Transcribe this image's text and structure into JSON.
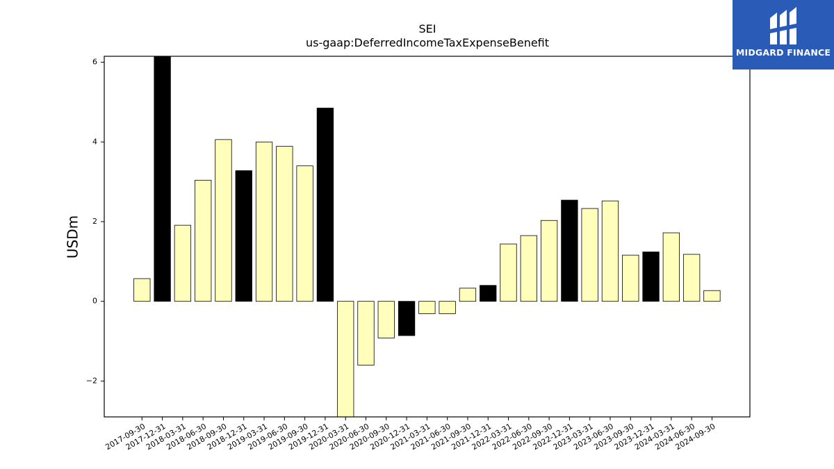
{
  "chart_data": {
    "type": "bar",
    "title": "SEI",
    "subtitle": "us-gaap:DeferredIncomeTaxExpenseBenefit",
    "xlabel": "",
    "ylabel": "USDm",
    "ylim": [
      -2.9,
      6.15
    ],
    "yticks": [
      -2,
      0,
      2,
      4,
      6
    ],
    "ytick_labels": [
      "−2",
      "0",
      "2",
      "4",
      "6"
    ],
    "categories": [
      "2017-09-30",
      "2017-12-31",
      "2018-03-31",
      "2018-06-30",
      "2018-09-30",
      "2018-12-31",
      "2019-03-31",
      "2019-06-30",
      "2019-09-30",
      "2019-12-31",
      "2020-03-31",
      "2020-06-30",
      "2020-09-30",
      "2020-12-31",
      "2021-03-31",
      "2021-06-30",
      "2021-09-30",
      "2021-12-31",
      "2022-03-31",
      "2022-06-30",
      "2022-09-30",
      "2022-12-31",
      "2023-03-31",
      "2023-06-30",
      "2023-09-30",
      "2023-12-31",
      "2024-03-31",
      "2024-06-30",
      "2024-09-30"
    ],
    "values": [
      0.57,
      6.15,
      1.91,
      3.04,
      4.06,
      3.28,
      4.0,
      3.89,
      3.4,
      4.85,
      -2.9,
      -1.6,
      -0.92,
      -0.86,
      -0.31,
      -0.31,
      0.33,
      0.4,
      1.44,
      1.65,
      2.03,
      2.54,
      2.33,
      2.52,
      1.16,
      1.24,
      1.72,
      1.18,
      0.27
    ],
    "bar_colors": [
      "#ffffbb",
      "#000000",
      "#ffffbb",
      "#ffffbb",
      "#ffffbb",
      "#000000",
      "#ffffbb",
      "#ffffbb",
      "#ffffbb",
      "#000000",
      "#ffffbb",
      "#ffffbb",
      "#ffffbb",
      "#000000",
      "#ffffbb",
      "#ffffbb",
      "#ffffbb",
      "#000000",
      "#ffffbb",
      "#ffffbb",
      "#ffffbb",
      "#000000",
      "#ffffbb",
      "#ffffbb",
      "#ffffbb",
      "#000000",
      "#ffffbb",
      "#ffffbb",
      "#ffffbb"
    ],
    "grid": false,
    "legend": "none"
  },
  "logo": {
    "text": "MIDGARD FINANCE",
    "background": "#2a5bb7"
  }
}
